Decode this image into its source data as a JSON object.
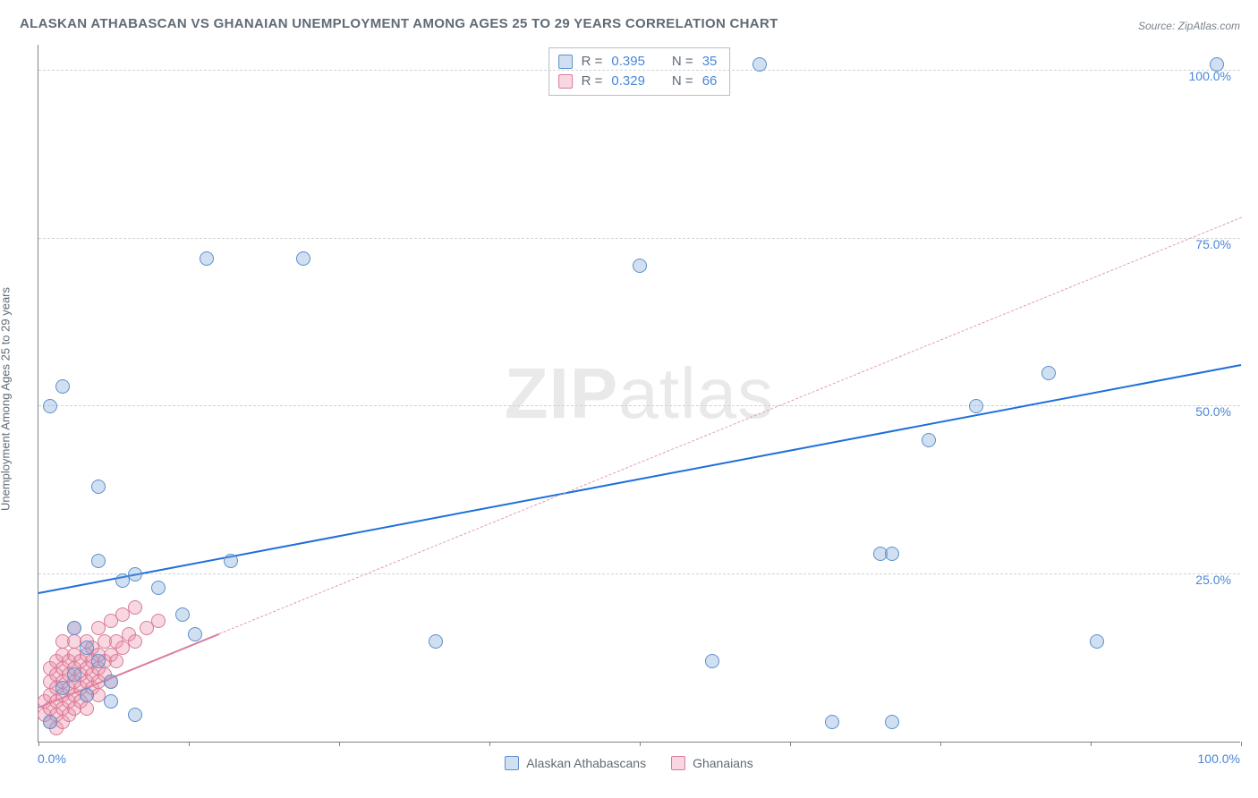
{
  "title": "ALASKAN ATHABASCAN VS GHANAIAN UNEMPLOYMENT AMONG AGES 25 TO 29 YEARS CORRELATION CHART",
  "source": "Source: ZipAtlas.com",
  "yaxis_label": "Unemployment Among Ages 25 to 29 years",
  "watermark_a": "ZIP",
  "watermark_b": "atlas",
  "chart": {
    "type": "scatter",
    "xlim": [
      0,
      100
    ],
    "ylim": [
      0,
      104
    ],
    "y_gridlines": [
      25,
      50,
      75,
      100
    ],
    "y_tick_labels": [
      "25.0%",
      "50.0%",
      "75.0%",
      "100.0%"
    ],
    "x_ticks_at": [
      0,
      12.5,
      25,
      37.5,
      50,
      62.5,
      75,
      87.5,
      100
    ],
    "x_tick_labels": {
      "0": "0.0%",
      "100": "100.0%"
    },
    "background_color": "#ffffff",
    "grid_color": "#cfd4d8",
    "axis_color": "#7a838c",
    "tick_label_color": "#4a86d8",
    "marker_radius": 8,
    "marker_border_width": 1.2,
    "series": [
      {
        "id": "athabascan",
        "label": "Alaskan Athabascans",
        "fill": "rgba(120,165,216,0.35)",
        "stroke": "#5b8fce",
        "R": "0.395",
        "N": "35",
        "trend": {
          "x1": 0,
          "y1": 22,
          "x2": 100,
          "y2": 56,
          "color": "#1e6fd9",
          "width": 2.5,
          "dash": false
        },
        "points": [
          [
            1,
            50
          ],
          [
            2,
            53
          ],
          [
            14,
            72
          ],
          [
            22,
            72
          ],
          [
            50,
            71
          ],
          [
            60,
            101
          ],
          [
            98,
            101
          ],
          [
            5,
            38
          ],
          [
            5,
            27
          ],
          [
            7,
            24
          ],
          [
            8,
            25
          ],
          [
            10,
            23
          ],
          [
            12,
            19
          ],
          [
            13,
            16
          ],
          [
            3,
            17
          ],
          [
            4,
            14
          ],
          [
            5,
            12
          ],
          [
            6,
            6
          ],
          [
            8,
            4
          ],
          [
            16,
            27
          ],
          [
            33,
            15
          ],
          [
            56,
            12
          ],
          [
            66,
            3
          ],
          [
            71,
            3
          ],
          [
            70,
            28
          ],
          [
            71,
            28
          ],
          [
            74,
            45
          ],
          [
            78,
            50
          ],
          [
            84,
            55
          ],
          [
            88,
            15
          ],
          [
            2,
            8
          ],
          [
            3,
            10
          ],
          [
            4,
            7
          ],
          [
            1,
            3
          ],
          [
            6,
            9
          ]
        ]
      },
      {
        "id": "ghanaian",
        "label": "Ghanaians",
        "fill": "rgba(235,140,165,0.35)",
        "stroke": "#d97a99",
        "R": "0.329",
        "N": "66",
        "trend": {
          "x1": 0,
          "y1": 5,
          "x2": 100,
          "y2": 78,
          "color": "#e59ab0",
          "width": 1.2,
          "dash": true
        },
        "trend_solid_until_x": 15,
        "points": [
          [
            0.5,
            4
          ],
          [
            0.5,
            6
          ],
          [
            1,
            3
          ],
          [
            1,
            5
          ],
          [
            1,
            7
          ],
          [
            1,
            9
          ],
          [
            1,
            11
          ],
          [
            1.5,
            2
          ],
          [
            1.5,
            4
          ],
          [
            1.5,
            6
          ],
          [
            1.5,
            8
          ],
          [
            1.5,
            10
          ],
          [
            1.5,
            12
          ],
          [
            2,
            3
          ],
          [
            2,
            5
          ],
          [
            2,
            7
          ],
          [
            2,
            9
          ],
          [
            2,
            11
          ],
          [
            2,
            13
          ],
          [
            2,
            15
          ],
          [
            2.5,
            4
          ],
          [
            2.5,
            6
          ],
          [
            2.5,
            8
          ],
          [
            2.5,
            10
          ],
          [
            2.5,
            12
          ],
          [
            3,
            5
          ],
          [
            3,
            7
          ],
          [
            3,
            9
          ],
          [
            3,
            11
          ],
          [
            3,
            13
          ],
          [
            3,
            15
          ],
          [
            3,
            17
          ],
          [
            3.5,
            6
          ],
          [
            3.5,
            8
          ],
          [
            3.5,
            10
          ],
          [
            3.5,
            12
          ],
          [
            4,
            5
          ],
          [
            4,
            7
          ],
          [
            4,
            9
          ],
          [
            4,
            11
          ],
          [
            4,
            13
          ],
          [
            4,
            15
          ],
          [
            4.5,
            8
          ],
          [
            4.5,
            10
          ],
          [
            4.5,
            12
          ],
          [
            4.5,
            14
          ],
          [
            5,
            7
          ],
          [
            5,
            9
          ],
          [
            5,
            11
          ],
          [
            5,
            13
          ],
          [
            5,
            17
          ],
          [
            5.5,
            10
          ],
          [
            5.5,
            12
          ],
          [
            5.5,
            15
          ],
          [
            6,
            9
          ],
          [
            6,
            13
          ],
          [
            6,
            18
          ],
          [
            6.5,
            12
          ],
          [
            6.5,
            15
          ],
          [
            7,
            14
          ],
          [
            7,
            19
          ],
          [
            7.5,
            16
          ],
          [
            8,
            20
          ],
          [
            8,
            15
          ],
          [
            9,
            17
          ],
          [
            10,
            18
          ]
        ]
      }
    ]
  },
  "legend_box": {
    "r_label": "R =",
    "n_label": "N ="
  },
  "bottom_legend": [
    "Alaskan Athabascans",
    "Ghanaians"
  ]
}
